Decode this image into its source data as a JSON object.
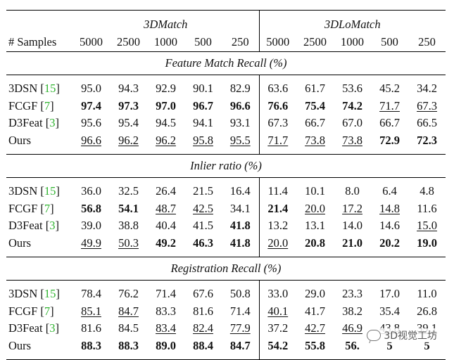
{
  "group_3dmatch": "3DMatch",
  "group_3dlomatch": "3DLoMatch",
  "samples_label": "# Samples",
  "sample_counts": [
    "5000",
    "2500",
    "1000",
    "500",
    "250",
    "5000",
    "2500",
    "1000",
    "500",
    "250"
  ],
  "sections": [
    {
      "title": "Feature Match Recall (%)",
      "rows": [
        {
          "name": "3DSN",
          "ref": "15",
          "cells": [
            {
              "v": "95.0",
              "s": ""
            },
            {
              "v": "94.3",
              "s": ""
            },
            {
              "v": "92.9",
              "s": ""
            },
            {
              "v": "90.1",
              "s": ""
            },
            {
              "v": "82.9",
              "s": ""
            },
            {
              "v": "63.6",
              "s": ""
            },
            {
              "v": "61.7",
              "s": ""
            },
            {
              "v": "53.6",
              "s": ""
            },
            {
              "v": "45.2",
              "s": ""
            },
            {
              "v": "34.2",
              "s": ""
            }
          ]
        },
        {
          "name": "FCGF",
          "ref": "7",
          "cells": [
            {
              "v": "97.4",
              "s": "b"
            },
            {
              "v": "97.3",
              "s": "b"
            },
            {
              "v": "97.0",
              "s": "b"
            },
            {
              "v": "96.7",
              "s": "b"
            },
            {
              "v": "96.6",
              "s": "b"
            },
            {
              "v": "76.6",
              "s": "b"
            },
            {
              "v": "75.4",
              "s": "b"
            },
            {
              "v": "74.2",
              "s": "b"
            },
            {
              "v": "71.7",
              "s": "u"
            },
            {
              "v": "67.3",
              "s": "u"
            }
          ]
        },
        {
          "name": "D3Feat",
          "ref": "3",
          "cells": [
            {
              "v": "95.6",
              "s": ""
            },
            {
              "v": "95.4",
              "s": ""
            },
            {
              "v": "94.5",
              "s": ""
            },
            {
              "v": "94.1",
              "s": ""
            },
            {
              "v": "93.1",
              "s": ""
            },
            {
              "v": "67.3",
              "s": ""
            },
            {
              "v": "66.7",
              "s": ""
            },
            {
              "v": "67.0",
              "s": ""
            },
            {
              "v": "66.7",
              "s": ""
            },
            {
              "v": "66.5",
              "s": ""
            }
          ]
        },
        {
          "name": "Ours",
          "ref": "",
          "cells": [
            {
              "v": "96.6",
              "s": "u"
            },
            {
              "v": "96.2",
              "s": "u"
            },
            {
              "v": "96.2",
              "s": "u"
            },
            {
              "v": "95.8",
              "s": "u"
            },
            {
              "v": "95.5",
              "s": "u"
            },
            {
              "v": "71.7",
              "s": "u"
            },
            {
              "v": "73.8",
              "s": "u"
            },
            {
              "v": "73.8",
              "s": "u"
            },
            {
              "v": "72.9",
              "s": "b"
            },
            {
              "v": "72.3",
              "s": "b"
            }
          ]
        }
      ]
    },
    {
      "title": "Inlier ratio (%)",
      "rows": [
        {
          "name": "3DSN",
          "ref": "15",
          "cells": [
            {
              "v": "36.0",
              "s": ""
            },
            {
              "v": "32.5",
              "s": ""
            },
            {
              "v": "26.4",
              "s": ""
            },
            {
              "v": "21.5",
              "s": ""
            },
            {
              "v": "16.4",
              "s": ""
            },
            {
              "v": "11.4",
              "s": ""
            },
            {
              "v": "10.1",
              "s": ""
            },
            {
              "v": "8.0",
              "s": ""
            },
            {
              "v": "6.4",
              "s": ""
            },
            {
              "v": "4.8",
              "s": ""
            }
          ]
        },
        {
          "name": "FCGF",
          "ref": "7",
          "cells": [
            {
              "v": "56.8",
              "s": "b"
            },
            {
              "v": "54.1",
              "s": "b"
            },
            {
              "v": "48.7",
              "s": "u"
            },
            {
              "v": "42.5",
              "s": "u"
            },
            {
              "v": "34.1",
              "s": ""
            },
            {
              "v": "21.4",
              "s": "b"
            },
            {
              "v": "20.0",
              "s": "u"
            },
            {
              "v": "17.2",
              "s": "u"
            },
            {
              "v": "14.8",
              "s": "u"
            },
            {
              "v": "11.6",
              "s": ""
            }
          ]
        },
        {
          "name": "D3Feat",
          "ref": "3",
          "cells": [
            {
              "v": "39.0",
              "s": ""
            },
            {
              "v": "38.8",
              "s": ""
            },
            {
              "v": "40.4",
              "s": ""
            },
            {
              "v": "41.5",
              "s": ""
            },
            {
              "v": "41.8",
              "s": "b"
            },
            {
              "v": "13.2",
              "s": ""
            },
            {
              "v": "13.1",
              "s": ""
            },
            {
              "v": "14.0",
              "s": ""
            },
            {
              "v": "14.6",
              "s": ""
            },
            {
              "v": "15.0",
              "s": "u"
            }
          ]
        },
        {
          "name": "Ours",
          "ref": "",
          "cells": [
            {
              "v": "49.9",
              "s": "u"
            },
            {
              "v": "50.3",
              "s": "u"
            },
            {
              "v": "49.2",
              "s": "b"
            },
            {
              "v": "46.3",
              "s": "b"
            },
            {
              "v": "41.8",
              "s": "b"
            },
            {
              "v": "20.0",
              "s": "u"
            },
            {
              "v": "20.8",
              "s": "b"
            },
            {
              "v": "21.0",
              "s": "b"
            },
            {
              "v": "20.2",
              "s": "b"
            },
            {
              "v": "19.0",
              "s": "b"
            }
          ]
        }
      ]
    },
    {
      "title": "Registration Recall (%)",
      "rows": [
        {
          "name": "3DSN",
          "ref": "15",
          "cells": [
            {
              "v": "78.4",
              "s": ""
            },
            {
              "v": "76.2",
              "s": ""
            },
            {
              "v": "71.4",
              "s": ""
            },
            {
              "v": "67.6",
              "s": ""
            },
            {
              "v": "50.8",
              "s": ""
            },
            {
              "v": "33.0",
              "s": ""
            },
            {
              "v": "29.0",
              "s": ""
            },
            {
              "v": "23.3",
              "s": ""
            },
            {
              "v": "17.0",
              "s": ""
            },
            {
              "v": "11.0",
              "s": ""
            }
          ]
        },
        {
          "name": "FCGF",
          "ref": "7",
          "cells": [
            {
              "v": "85.1",
              "s": "u"
            },
            {
              "v": "84.7",
              "s": "u"
            },
            {
              "v": "83.3",
              "s": ""
            },
            {
              "v": "81.6",
              "s": ""
            },
            {
              "v": "71.4",
              "s": ""
            },
            {
              "v": "40.1",
              "s": "u"
            },
            {
              "v": "41.7",
              "s": ""
            },
            {
              "v": "38.2",
              "s": ""
            },
            {
              "v": "35.4",
              "s": ""
            },
            {
              "v": "26.8",
              "s": ""
            }
          ]
        },
        {
          "name": "D3Feat",
          "ref": "3",
          "cells": [
            {
              "v": "81.6",
              "s": ""
            },
            {
              "v": "84.5",
              "s": ""
            },
            {
              "v": "83.4",
              "s": "u"
            },
            {
              "v": "82.4",
              "s": "u"
            },
            {
              "v": "77.9",
              "s": "u"
            },
            {
              "v": "37.2",
              "s": ""
            },
            {
              "v": "42.7",
              "s": "u"
            },
            {
              "v": "46.9",
              "s": "u"
            },
            {
              "v": "43.8",
              "s": "u"
            },
            {
              "v": "39.1",
              "s": "u"
            }
          ]
        },
        {
          "name": "Ours",
          "ref": "",
          "cells": [
            {
              "v": "88.3",
              "s": "b"
            },
            {
              "v": "88.3",
              "s": "b"
            },
            {
              "v": "89.0",
              "s": "b"
            },
            {
              "v": "88.4",
              "s": "b"
            },
            {
              "v": "84.7",
              "s": "b"
            },
            {
              "v": "54.2",
              "s": "b"
            },
            {
              "v": "55.8",
              "s": "b"
            },
            {
              "v": "56.",
              "s": "b"
            },
            {
              "v": "5",
              "s": "b"
            },
            {
              "v": "5",
              "s": "b"
            }
          ]
        }
      ]
    }
  ],
  "watermark": "3D视觉工坊",
  "colors": {
    "ref": "#2fb32f",
    "text": "#111111"
  }
}
